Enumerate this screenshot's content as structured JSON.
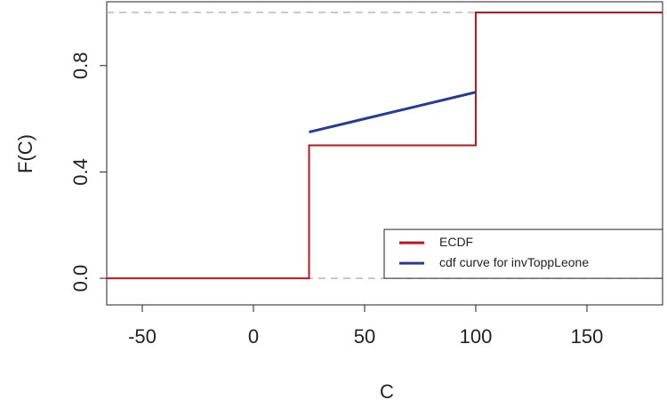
{
  "chart_data": {
    "type": "line",
    "x_label": "C",
    "y_label": "F(C)",
    "xlim": [
      -66,
      184
    ],
    "ylim": [
      -0.1,
      1.04
    ],
    "xticks": [
      -50,
      0,
      50,
      100,
      150
    ],
    "yticks": [
      {
        "value": 0,
        "label": "0.0"
      },
      {
        "value": 0.4,
        "label": "0.4"
      },
      {
        "value": 0.8,
        "label": "0.8"
      }
    ],
    "hlines": [
      0,
      1
    ],
    "legend": "bottom-right",
    "series": [
      {
        "name": "ECDF",
        "color": "#c0141c",
        "x": [
          -66,
          25,
          25,
          100,
          100,
          184
        ],
        "values": [
          0,
          0,
          0.5,
          0.5,
          1,
          1
        ]
      },
      {
        "name": "cdf curve for invToppLeone",
        "color": "#253c96",
        "x": [
          25,
          50,
          75,
          100
        ],
        "values": [
          0.55,
          0.6,
          0.65,
          0.7
        ]
      }
    ]
  }
}
